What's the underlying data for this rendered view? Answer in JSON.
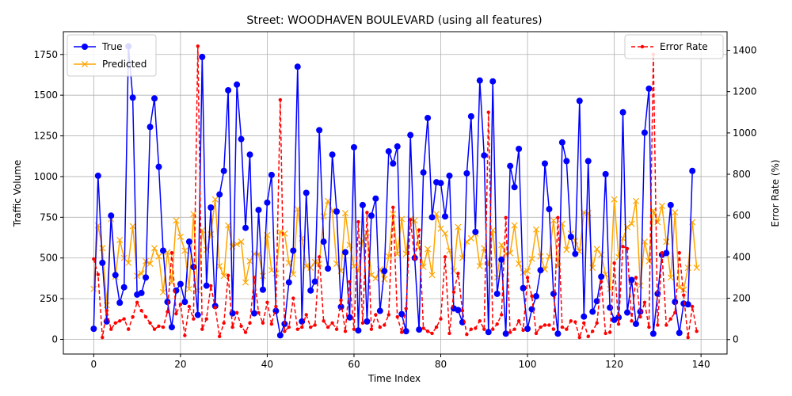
{
  "chart_data": {
    "type": "line",
    "title": "Street: WOODHAVEN BOULEVARD (using all features)",
    "xlabel": "Time Index",
    "ylabel": "Traffic Volume",
    "y2label": "Error Rate (%)",
    "xlim": [
      -7,
      146
    ],
    "ylim": [
      -90,
      1890
    ],
    "y2lim": [
      -70,
      1490
    ],
    "xticks": [
      0,
      20,
      40,
      60,
      80,
      100,
      120,
      140
    ],
    "yticks": [
      0,
      250,
      500,
      750,
      1000,
      1250,
      1500,
      1750
    ],
    "y2ticks": [
      0,
      200,
      400,
      600,
      800,
      1000,
      1200,
      1400
    ],
    "grid": true,
    "legend_left_position": "upper-left",
    "legend_right_position": "upper-right",
    "series": [
      {
        "name": "True",
        "axis": "left",
        "color": "#0000ff",
        "marker": "circle",
        "style": "solid",
        "values": [
          65,
          1005,
          470,
          110,
          760,
          395,
          225,
          320,
          1800,
          1485,
          275,
          285,
          380,
          1305,
          1480,
          1060,
          545,
          230,
          75,
          300,
          340,
          230,
          600,
          445,
          150,
          1735,
          330,
          810,
          205,
          890,
          1035,
          1530,
          160,
          1565,
          1230,
          685,
          1135,
          160,
          795,
          305,
          840,
          1010,
          175,
          25,
          95,
          350,
          545,
          1675,
          110,
          900,
          300,
          355,
          1285,
          600,
          435,
          1135,
          785,
          200,
          535,
          135,
          1180,
          55,
          825,
          110,
          760,
          865,
          175,
          420,
          1155,
          1080,
          1185,
          155,
          50,
          1255,
          500,
          60,
          1025,
          1360,
          750,
          965,
          960,
          755,
          1005,
          190,
          180,
          105,
          1020,
          1370,
          660,
          1590,
          1130,
          45,
          1585,
          280,
          490,
          35,
          1065,
          935,
          1170,
          315,
          65,
          185,
          265,
          425,
          1080,
          800,
          280,
          35,
          1210,
          1095,
          630,
          525,
          1465,
          140,
          1095,
          170,
          235,
          385,
          1015,
          195,
          120,
          135,
          1395,
          165,
          365,
          95,
          170,
          1270,
          1540,
          35,
          280,
          520,
          530,
          825,
          230,
          40,
          220,
          215,
          1035
        ]
      },
      {
        "name": "Predicted",
        "axis": "left",
        "color": "#ffa500",
        "marker": "x",
        "style": "solid",
        "values": [
          310,
          700,
          560,
          210,
          740,
          385,
          610,
          500,
          470,
          695,
          390,
          405,
          480,
          465,
          560,
          510,
          290,
          535,
          350,
          730,
          630,
          545,
          310,
          770,
          300,
          670,
          550,
          645,
          860,
          450,
          390,
          700,
          570,
          585,
          600,
          350,
          480,
          525,
          525,
          390,
          640,
          425,
          405,
          660,
          650,
          470,
          400,
          800,
          620,
          450,
          440,
          475,
          465,
          755,
          850,
          790,
          465,
          420,
          775,
          580,
          450,
          420,
          605,
          655,
          395,
          375,
          430,
          370,
          510,
          770,
          525,
          740,
          525,
          740,
          730,
          565,
          445,
          555,
          395,
          770,
          680,
          650,
          545,
          420,
          690,
          500,
          600,
          620,
          650,
          450,
          560,
          455,
          670,
          380,
          580,
          525,
          530,
          700,
          465,
          410,
          420,
          495,
          675,
          510,
          430,
          510,
          730,
          450,
          710,
          550,
          650,
          605,
          540,
          780,
          775,
          440,
          555,
          520,
          400,
          310,
          860,
          505,
          620,
          690,
          710,
          850,
          330,
          600,
          480,
          790,
          720,
          820,
          600,
          380,
          780,
          320,
          305,
          440,
          720,
          440
        ]
      },
      {
        "name": "Error Rate",
        "axis": "right",
        "color": "#ff0000",
        "marker": "dot",
        "style": "dashed",
        "values": [
          390,
          315,
          10,
          140,
          50,
          80,
          90,
          100,
          50,
          110,
          180,
          140,
          110,
          80,
          50,
          65,
          60,
          135,
          420,
          125,
          170,
          20,
          160,
          100,
          1420,
          50,
          100,
          260,
          155,
          15,
          80,
          310,
          60,
          130,
          65,
          35,
          80,
          300,
          130,
          80,
          180,
          75,
          160,
          1160,
          40,
          60,
          200,
          50,
          60,
          120,
          60,
          70,
          400,
          90,
          60,
          80,
          50,
          190,
          40,
          280,
          50,
          570,
          80,
          615,
          50,
          120,
          60,
          70,
          120,
          640,
          110,
          35,
          150,
          580,
          390,
          530,
          55,
          40,
          30,
          60,
          100,
          400,
          30,
          230,
          320,
          140,
          25,
          50,
          55,
          90,
          50,
          1100,
          50,
          75,
          120,
          590,
          35,
          50,
          90,
          45,
          300,
          210,
          30,
          60,
          70,
          70,
          50,
          590,
          60,
          50,
          90,
          85,
          10,
          80,
          15,
          40,
          80,
          280,
          30,
          35,
          370,
          75,
          450,
          440,
          90,
          300,
          110,
          180,
          60,
          1380,
          70,
          420,
          70,
          100,
          130,
          420,
          215,
          10,
          160,
          40
        ]
      }
    ]
  }
}
